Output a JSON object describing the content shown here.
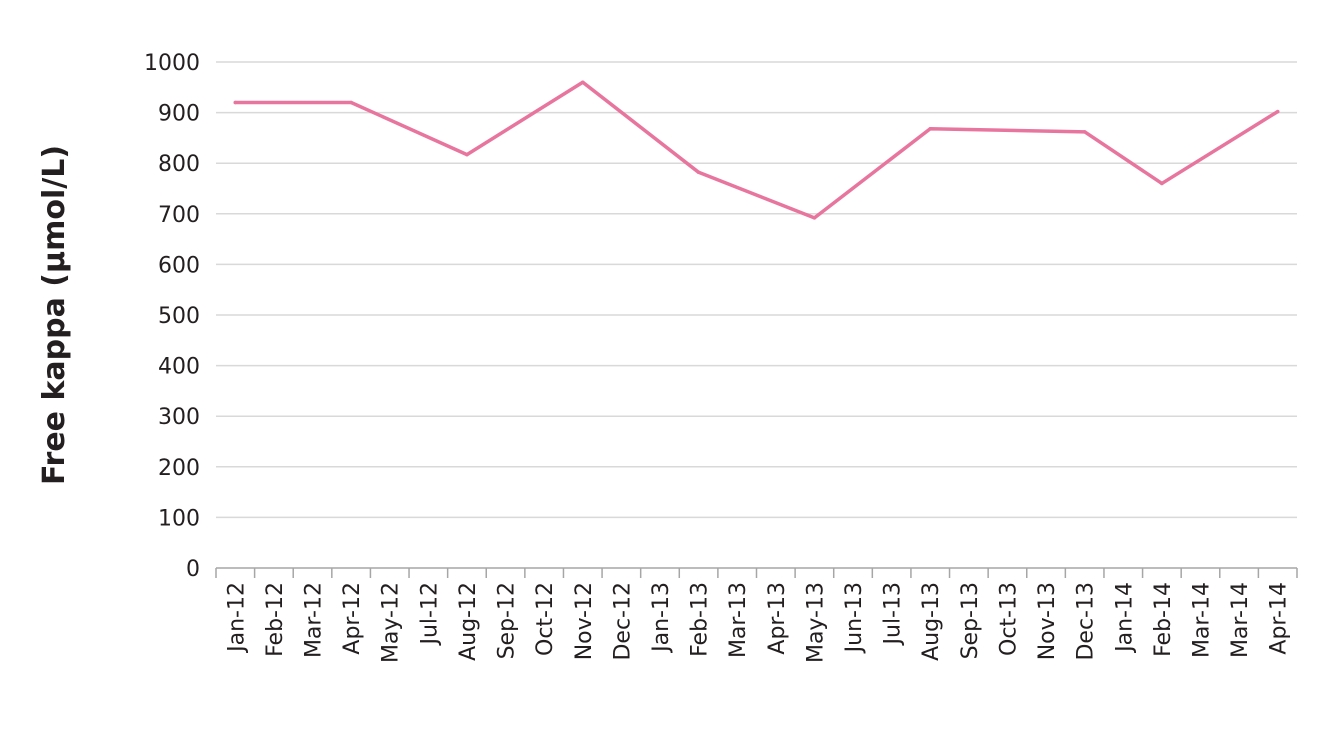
{
  "chart_data": {
    "type": "line",
    "title": "",
    "xlabel": "",
    "ylabel": "Free kappa (μmol/L)",
    "ylim": [
      0,
      1000
    ],
    "y_ticks": [
      "0",
      "100",
      "200",
      "300",
      "400",
      "500",
      "600",
      "700",
      "800",
      "900",
      "1000"
    ],
    "grid": true,
    "line_color": "#e8759e",
    "categories": [
      "Jan-12",
      "Feb-12",
      "Mar-12",
      "Apr-12",
      "May-12",
      "Jul-12",
      "Aug-12",
      "Sep-12",
      "Oct-12",
      "Nov-12",
      "Dec-12",
      "Jan-13",
      "Feb-13",
      "Mar-13",
      "Apr-13",
      "May-13",
      "Jun-13",
      "Jul-13",
      "Aug-13",
      "Sep-13",
      "Oct-13",
      "Nov-13",
      "Dec-13",
      "Jan-14",
      "Feb-14",
      "Mar-14",
      "Mar-14",
      "Apr-14"
    ],
    "series": [
      {
        "points": [
          {
            "x": "Jan-12",
            "y": 920
          },
          {
            "x": "Apr-12",
            "y": 920
          },
          {
            "x": "Aug-12",
            "y": 817
          },
          {
            "x": "Nov-12",
            "y": 960
          },
          {
            "x": "Feb-13",
            "y": 782
          },
          {
            "x": "May-13",
            "y": 692
          },
          {
            "x": "Aug-13",
            "y": 868
          },
          {
            "x": "Dec-13",
            "y": 862
          },
          {
            "x": "Feb-14",
            "y": 760
          },
          {
            "x": "Apr-14",
            "y": 902
          }
        ]
      }
    ]
  }
}
